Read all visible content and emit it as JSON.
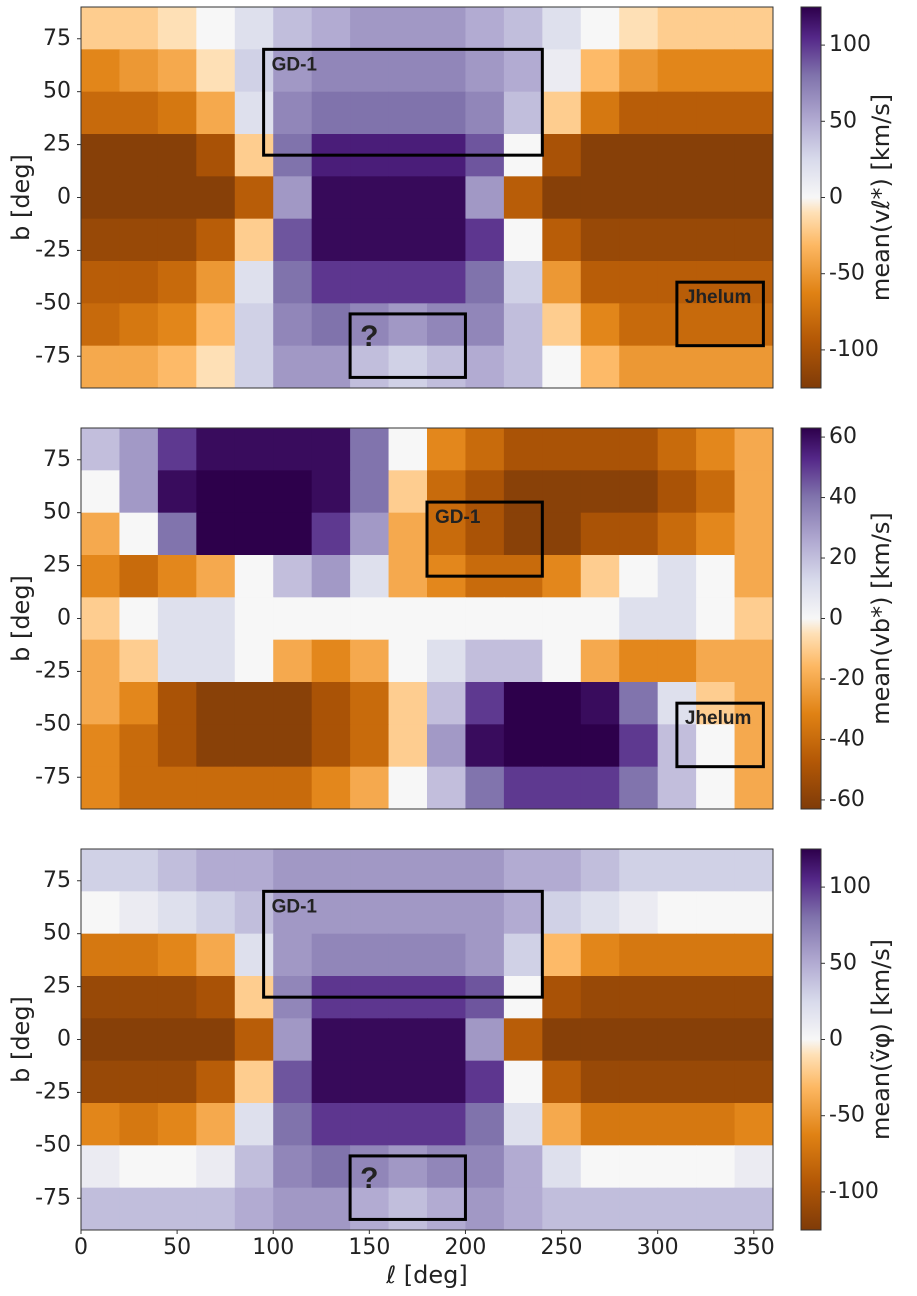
{
  "chart_data": [
    {
      "type": "heatmap",
      "colormap": "PuOr",
      "ylabel": "b [deg]",
      "colorbar_label": "mean(vℓ*) [km/s]",
      "x": [
        10,
        30,
        50,
        70,
        90,
        110,
        130,
        150,
        170,
        190,
        210,
        230,
        250,
        270,
        290,
        310,
        330,
        350
      ],
      "y": [
        80,
        60,
        40,
        20,
        0,
        -20,
        -40,
        -60,
        -80
      ],
      "z": [
        [
          -20,
          -20,
          -10,
          0,
          20,
          40,
          50,
          60,
          60,
          60,
          50,
          40,
          20,
          0,
          -10,
          -20,
          -20,
          -20
        ],
        [
          -60,
          -50,
          -40,
          -10,
          30,
          60,
          70,
          70,
          70,
          70,
          60,
          50,
          10,
          -30,
          -50,
          -60,
          -60,
          -60
        ],
        [
          -80,
          -80,
          -70,
          -40,
          20,
          70,
          80,
          80,
          80,
          80,
          70,
          40,
          -20,
          -70,
          -90,
          -90,
          -90,
          -90
        ],
        [
          -120,
          -120,
          -120,
          -100,
          -20,
          80,
          110,
          110,
          110,
          110,
          90,
          0,
          -100,
          -120,
          -120,
          -120,
          -120,
          -120
        ],
        [
          -120,
          -120,
          -120,
          -120,
          -90,
          60,
          120,
          120,
          120,
          120,
          60,
          -90,
          -120,
          -120,
          -120,
          -120,
          -120,
          -120
        ],
        [
          -110,
          -110,
          -110,
          -90,
          -20,
          90,
          120,
          120,
          120,
          120,
          100,
          0,
          -90,
          -110,
          -110,
          -110,
          -110,
          -110
        ],
        [
          -90,
          -90,
          -80,
          -50,
          20,
          80,
          100,
          100,
          100,
          100,
          80,
          30,
          -50,
          -90,
          -90,
          -90,
          -90,
          -90
        ],
        [
          -80,
          -70,
          -60,
          -30,
          30,
          70,
          80,
          70,
          60,
          70,
          70,
          40,
          -20,
          -60,
          -80,
          -80,
          -80,
          -80
        ],
        [
          -40,
          -40,
          -30,
          -10,
          30,
          60,
          60,
          40,
          30,
          40,
          50,
          40,
          0,
          -30,
          -50,
          -50,
          -50,
          -50
        ]
      ],
      "xlim": [
        0,
        360
      ],
      "ylim": [
        -90,
        90
      ],
      "yticks": [
        -75,
        -50,
        -25,
        0,
        25,
        50,
        75
      ],
      "clim": [
        -125,
        125
      ],
      "cticks": [
        -100,
        -50,
        0,
        50,
        100
      ],
      "regions": [
        {
          "label": "GD-1",
          "x": [
            95,
            240
          ],
          "y": [
            20,
            70
          ]
        },
        {
          "label": "?",
          "x": [
            140,
            200
          ],
          "y": [
            -85,
            -55
          ]
        },
        {
          "label": "Jhelum",
          "x": [
            310,
            355
          ],
          "y": [
            -70,
            -40
          ]
        }
      ]
    },
    {
      "type": "heatmap",
      "colormap": "PuOr",
      "ylabel": "b [deg]",
      "colorbar_label": "mean(vb*) [km/s]",
      "x": [
        10,
        30,
        50,
        70,
        90,
        110,
        130,
        150,
        170,
        190,
        210,
        230,
        250,
        270,
        290,
        310,
        330,
        350
      ],
      "y": [
        80,
        60,
        40,
        20,
        0,
        -20,
        -40,
        -60,
        -80
      ],
      "z": [
        [
          20,
          30,
          50,
          60,
          60,
          60,
          60,
          40,
          0,
          -30,
          -40,
          -50,
          -50,
          -50,
          -50,
          -40,
          -30,
          -20
        ],
        [
          0,
          30,
          60,
          63,
          63,
          63,
          60,
          40,
          -10,
          -40,
          -50,
          -60,
          -60,
          -60,
          -60,
          -50,
          -40,
          -20
        ],
        [
          -20,
          0,
          40,
          63,
          63,
          63,
          50,
          30,
          -20,
          -40,
          -50,
          -60,
          -60,
          -50,
          -50,
          -40,
          -30,
          -20
        ],
        [
          -30,
          -40,
          -30,
          -20,
          0,
          20,
          30,
          10,
          -20,
          -30,
          -40,
          -40,
          -30,
          -10,
          0,
          10,
          0,
          -20
        ],
        [
          -10,
          0,
          10,
          10,
          0,
          0,
          0,
          0,
          0,
          0,
          0,
          0,
          0,
          0,
          10,
          10,
          0,
          -10
        ],
        [
          -20,
          -10,
          10,
          10,
          0,
          -20,
          -30,
          -20,
          0,
          10,
          20,
          20,
          0,
          -20,
          -30,
          -30,
          -20,
          -20
        ],
        [
          -20,
          -30,
          -50,
          -60,
          -60,
          -60,
          -50,
          -40,
          -10,
          20,
          50,
          63,
          63,
          60,
          40,
          10,
          -10,
          -20
        ],
        [
          -30,
          -40,
          -50,
          -60,
          -60,
          -60,
          -50,
          -40,
          -10,
          30,
          60,
          63,
          63,
          63,
          50,
          20,
          0,
          -20
        ],
        [
          -30,
          -40,
          -40,
          -40,
          -40,
          -40,
          -30,
          -20,
          0,
          20,
          40,
          50,
          50,
          50,
          40,
          20,
          0,
          -20
        ]
      ],
      "xlim": [
        0,
        360
      ],
      "ylim": [
        -90,
        90
      ],
      "yticks": [
        -75,
        -50,
        -25,
        0,
        25,
        50,
        75
      ],
      "clim": [
        -63,
        63
      ],
      "cticks": [
        -60,
        -40,
        -20,
        0,
        20,
        40,
        60
      ],
      "regions": [
        {
          "label": "GD-1",
          "x": [
            180,
            240
          ],
          "y": [
            20,
            55
          ]
        },
        {
          "label": "Jhelum",
          "x": [
            310,
            355
          ],
          "y": [
            -70,
            -40
          ]
        }
      ]
    },
    {
      "type": "heatmap",
      "colormap": "PuOr",
      "ylabel": "b [deg]",
      "xlabel": "ℓ [deg]",
      "colorbar_label": "mean(ṽφ) [km/s]",
      "x": [
        10,
        30,
        50,
        70,
        90,
        110,
        130,
        150,
        170,
        190,
        210,
        230,
        250,
        270,
        290,
        310,
        330,
        350
      ],
      "y": [
        80,
        60,
        40,
        20,
        0,
        -20,
        -40,
        -60,
        -80
      ],
      "z": [
        [
          30,
          30,
          40,
          50,
          50,
          60,
          60,
          60,
          60,
          60,
          60,
          50,
          50,
          40,
          30,
          30,
          30,
          30
        ],
        [
          0,
          10,
          20,
          30,
          40,
          60,
          60,
          60,
          60,
          60,
          60,
          50,
          30,
          20,
          10,
          0,
          0,
          0
        ],
        [
          -70,
          -70,
          -60,
          -40,
          20,
          60,
          70,
          70,
          70,
          70,
          60,
          30,
          -30,
          -60,
          -70,
          -70,
          -70,
          -70
        ],
        [
          -110,
          -110,
          -110,
          -100,
          -20,
          70,
          100,
          100,
          100,
          100,
          90,
          0,
          -100,
          -110,
          -110,
          -110,
          -110,
          -110
        ],
        [
          -120,
          -120,
          -120,
          -120,
          -90,
          60,
          120,
          120,
          120,
          120,
          60,
          -90,
          -120,
          -120,
          -120,
          -120,
          -120,
          -120
        ],
        [
          -110,
          -110,
          -110,
          -90,
          -20,
          90,
          120,
          120,
          120,
          120,
          100,
          0,
          -90,
          -110,
          -110,
          -110,
          -110,
          -110
        ],
        [
          -60,
          -70,
          -60,
          -40,
          20,
          80,
          100,
          100,
          100,
          100,
          80,
          20,
          -40,
          -70,
          -70,
          -70,
          -70,
          -60
        ],
        [
          10,
          0,
          0,
          10,
          40,
          70,
          80,
          70,
          60,
          70,
          70,
          50,
          20,
          0,
          0,
          0,
          0,
          10
        ],
        [
          40,
          40,
          40,
          40,
          50,
          60,
          60,
          50,
          40,
          50,
          60,
          50,
          40,
          40,
          40,
          40,
          40,
          40
        ]
      ],
      "xlim": [
        0,
        360
      ],
      "ylim": [
        -90,
        90
      ],
      "xticks": [
        0,
        50,
        100,
        150,
        200,
        250,
        300,
        350
      ],
      "yticks": [
        -75,
        -50,
        -25,
        0,
        25,
        50,
        75
      ],
      "clim": [
        -125,
        125
      ],
      "cticks": [
        -100,
        -50,
        0,
        50,
        100
      ],
      "regions": [
        {
          "label": "GD-1",
          "x": [
            95,
            240
          ],
          "y": [
            20,
            70
          ]
        },
        {
          "label": "?",
          "x": [
            140,
            200
          ],
          "y": [
            -85,
            -55
          ]
        }
      ]
    }
  ]
}
